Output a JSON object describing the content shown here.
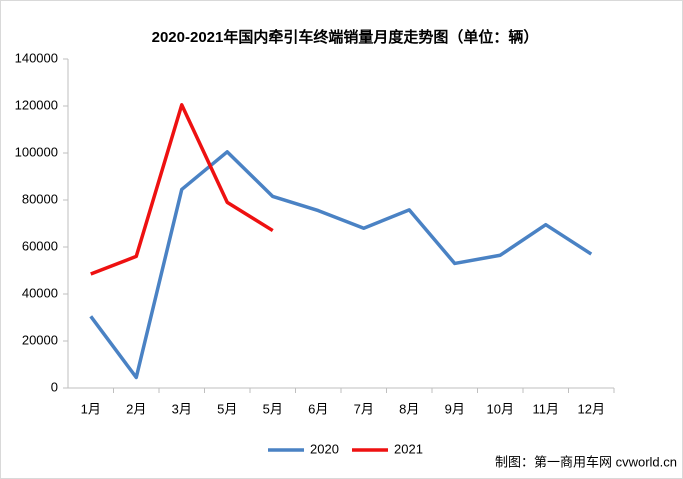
{
  "chart_data": {
    "type": "line",
    "title": "2020-2021年国内牵引车终端销量月度走势图（单位：辆）",
    "categories": [
      "1月",
      "2月",
      "3月",
      "5月",
      "5月",
      "6月",
      "7月",
      "8月",
      "9月",
      "10月",
      "11月",
      "12月"
    ],
    "series": [
      {
        "name": "2020",
        "color": "#4a82c4",
        "values": [
          30500,
          4500,
          84500,
          100500,
          81500,
          75500,
          68000,
          75800,
          53000,
          56500,
          69500,
          57000
        ]
      },
      {
        "name": "2021",
        "color": "#ee1111",
        "values": [
          48500,
          56000,
          120500,
          79000,
          67000,
          null,
          null,
          null,
          null,
          null,
          null,
          null
        ]
      }
    ],
    "ylim": [
      0,
      140000
    ],
    "yticks": [
      0,
      20000,
      40000,
      60000,
      80000,
      100000,
      120000,
      140000
    ],
    "grid": false,
    "legend": "bottom",
    "credit": "制图：第一商用车网 cvworld.cn"
  }
}
